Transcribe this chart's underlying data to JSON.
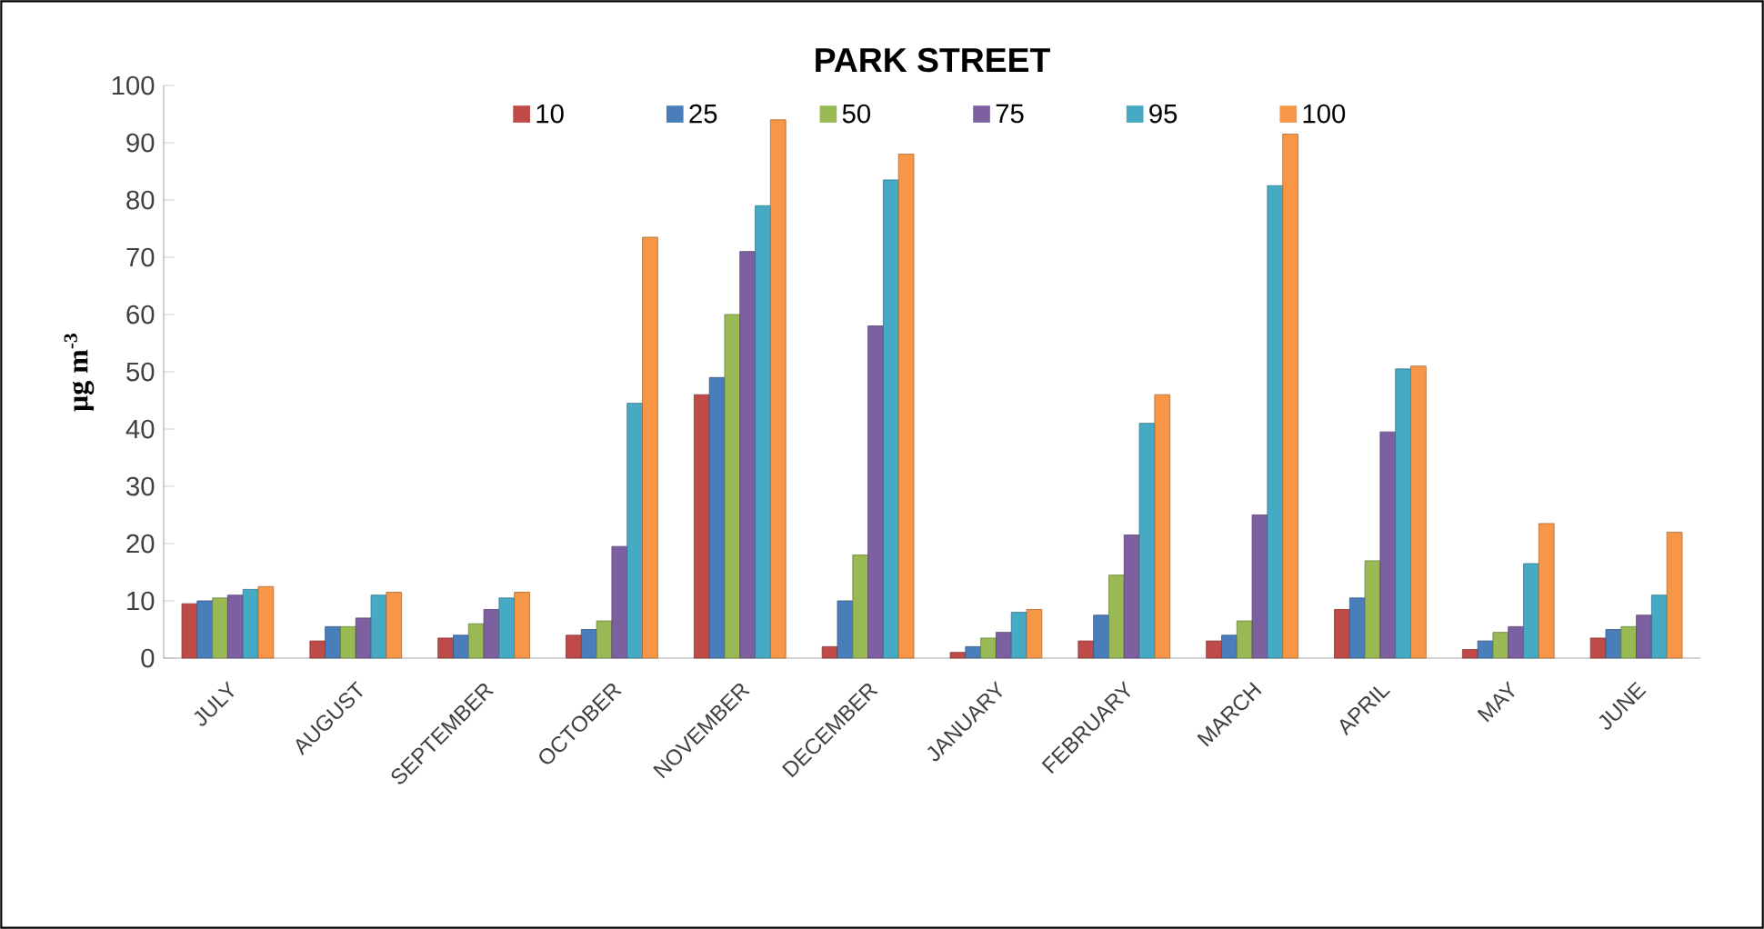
{
  "chart_data": {
    "type": "bar",
    "title": "PARK STREET",
    "ylabel": "μg m$^{-3}$",
    "categories": [
      "JULY",
      "AUGUST",
      "SEPTEMBER",
      "OCTOBER",
      "NOVEMBER",
      "DECEMBER",
      "JANUARY",
      "FEBRUARY",
      "MARCH",
      "APRIL",
      "MAY",
      "JUNE"
    ],
    "series": [
      {
        "name": "10",
        "color": "#be4b48",
        "values": [
          9.5,
          3,
          3.5,
          4,
          46,
          2,
          1,
          3,
          3,
          8.5,
          1.5,
          3.5
        ]
      },
      {
        "name": "25",
        "color": "#4a7ebb",
        "values": [
          10,
          5.5,
          4,
          5,
          49,
          10,
          2,
          7.5,
          4,
          10.5,
          3,
          5
        ]
      },
      {
        "name": "50",
        "color": "#98b954",
        "values": [
          10.5,
          5.5,
          6,
          6.5,
          60,
          18,
          3.5,
          14.5,
          6.5,
          17,
          4.5,
          5.5
        ]
      },
      {
        "name": "75",
        "color": "#7d60a0",
        "values": [
          11,
          7,
          8.5,
          19.5,
          71,
          58,
          4.5,
          21.5,
          25,
          39.5,
          5.5,
          7.5
        ]
      },
      {
        "name": "95",
        "color": "#46aac5",
        "values": [
          12,
          11,
          10.5,
          44.5,
          79,
          83.5,
          8,
          41,
          82.5,
          50.5,
          16.5,
          11
        ]
      },
      {
        "name": "100",
        "color": "#f79646",
        "values": [
          12.5,
          11.5,
          11.5,
          73.5,
          94,
          88,
          8.5,
          46,
          91.5,
          51,
          23.5,
          22
        ]
      }
    ],
    "ylim": [
      0,
      100
    ],
    "yticks": [
      0,
      10,
      20,
      30,
      40,
      50,
      60,
      70,
      80,
      90,
      100
    ],
    "grid": false,
    "legend": "top"
  }
}
